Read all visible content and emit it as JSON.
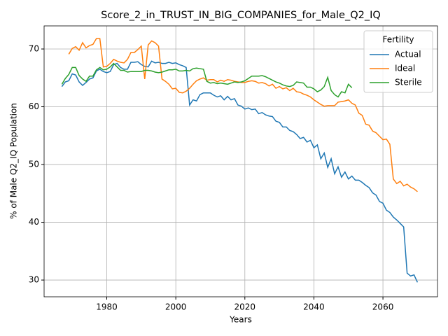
{
  "chart_data": {
    "type": "line",
    "title": "Score_2_in_TRUST_IN_BIG_COMPANIES_for_Male_Q2_IQ",
    "xlabel": "Years",
    "ylabel": "% of Male Q2_IQ Population",
    "legend_title": "Fertility",
    "legend": "upper right",
    "grid": true,
    "xlim": [
      1961.85,
      2075.8
    ],
    "ylim": [
      27.1,
      74.0
    ],
    "xticks": [
      1980,
      2000,
      2020,
      2040,
      2060
    ],
    "yticks": [
      30,
      40,
      50,
      60,
      70
    ],
    "x": [
      1967,
      1968,
      1969,
      1970,
      1971,
      1972,
      1973,
      1974,
      1975,
      1976,
      1977,
      1978,
      1979,
      1980,
      1981,
      1982,
      1983,
      1984,
      1985,
      1986,
      1987,
      1988,
      1989,
      1990,
      1991,
      1992,
      1993,
      1994,
      1995,
      1996,
      1997,
      1998,
      1999,
      2000,
      2001,
      2002,
      2003,
      2004,
      2005,
      2006,
      2007,
      2008,
      2009,
      2010,
      2011,
      2012,
      2013,
      2014,
      2015,
      2016,
      2017,
      2018,
      2019,
      2020,
      2021,
      2022,
      2023,
      2024,
      2025,
      2026,
      2027,
      2028,
      2029,
      2030,
      2031,
      2032,
      2033,
      2034,
      2035,
      2036,
      2037,
      2038,
      2039,
      2040,
      2041,
      2042,
      2043,
      2044,
      2045,
      2046,
      2047,
      2048,
      2049,
      2050,
      2051,
      2052,
      2053,
      2054,
      2055,
      2056,
      2057,
      2058,
      2059,
      2060,
      2061,
      2062,
      2063,
      2064,
      2065,
      2066,
      2067,
      2068,
      2069,
      2070
    ],
    "series": [
      {
        "name": "Actual",
        "color": "#1f77b4",
        "values": [
          63.5,
          64.3,
          64.5,
          65.7,
          65.5,
          64.3,
          63.7,
          64.2,
          64.8,
          65.0,
          66.2,
          66.5,
          66.1,
          65.9,
          66.1,
          67.3,
          67.5,
          66.8,
          66.5,
          66.5,
          67.7,
          67.7,
          67.8,
          67.3,
          67.0,
          66.9,
          67.9,
          67.6,
          67.7,
          67.5,
          67.5,
          67.7,
          67.5,
          67.6,
          67.3,
          67.1,
          66.8,
          60.3,
          61.2,
          61.0,
          62.1,
          62.4,
          62.4,
          62.4,
          62.0,
          61.7,
          61.9,
          61.2,
          61.8,
          61.2,
          61.4,
          60.3,
          60.1,
          59.6,
          59.8,
          59.5,
          59.6,
          58.8,
          59.0,
          58.6,
          58.4,
          58.3,
          57.5,
          57.3,
          56.5,
          56.5,
          55.9,
          55.7,
          55.2,
          54.5,
          54.7,
          53.9,
          54.2,
          52.9,
          53.4,
          51.0,
          52.0,
          49.5,
          51.0,
          48.4,
          49.6,
          47.8,
          48.7,
          47.5,
          48.0,
          47.3,
          47.3,
          46.9,
          46.4,
          46.0,
          45.1,
          44.7,
          43.6,
          43.3,
          42.1,
          41.7,
          40.9,
          40.4,
          39.8,
          39.2,
          31.2,
          30.7,
          30.9,
          29.6
        ]
      },
      {
        "name": "Ideal",
        "color": "#ff7f0e",
        "values": [
          null,
          null,
          69.1,
          70.1,
          70.4,
          69.8,
          71.1,
          70.2,
          70.6,
          70.8,
          71.8,
          71.8,
          66.9,
          67.0,
          67.5,
          68.2,
          67.9,
          67.7,
          67.6,
          68.2,
          69.4,
          69.4,
          69.9,
          70.5,
          64.8,
          70.7,
          71.4,
          71.1,
          70.5,
          64.8,
          64.4,
          63.9,
          63.1,
          63.2,
          62.5,
          62.4,
          62.7,
          63.2,
          63.9,
          64.5,
          64.8,
          65.0,
          64.6,
          64.7,
          64.7,
          64.3,
          64.6,
          64.4,
          64.7,
          64.6,
          64.4,
          64.3,
          64.2,
          64.2,
          64.4,
          64.5,
          64.4,
          64.1,
          64.2,
          64.0,
          63.6,
          63.9,
          63.2,
          63.5,
          63.1,
          63.3,
          62.8,
          63.2,
          62.6,
          62.5,
          62.2,
          62.0,
          61.7,
          61.2,
          60.8,
          60.4,
          60.1,
          60.2,
          60.2,
          60.2,
          60.8,
          60.9,
          61.0,
          61.2,
          60.6,
          60.3,
          58.9,
          58.5,
          57.0,
          56.8,
          55.8,
          55.5,
          54.9,
          54.3,
          54.4,
          53.5,
          47.5,
          46.7,
          47.1,
          46.3,
          46.6,
          46.1,
          45.8,
          45.3
        ]
      },
      {
        "name": "Sterile",
        "color": "#2ca02c",
        "values": [
          63.9,
          64.9,
          65.6,
          66.8,
          66.8,
          65.4,
          64.8,
          64.4,
          65.3,
          65.3,
          66.4,
          66.8,
          66.4,
          66.5,
          66.9,
          67.5,
          66.9,
          66.3,
          66.3,
          66.0,
          66.1,
          66.1,
          66.1,
          66.1,
          66.3,
          66.3,
          66.2,
          66.0,
          65.9,
          66.0,
          66.2,
          66.4,
          66.4,
          66.5,
          66.2,
          66.2,
          66.3,
          66.2,
          66.6,
          66.7,
          66.6,
          66.5,
          64.4,
          64.1,
          64.2,
          64.0,
          64.1,
          64.0,
          63.9,
          64.1,
          64.3,
          64.2,
          64.3,
          64.5,
          64.9,
          65.3,
          65.3,
          65.3,
          65.4,
          65.2,
          64.9,
          64.6,
          64.3,
          64.1,
          63.8,
          63.6,
          63.5,
          63.7,
          64.3,
          64.2,
          64.1,
          63.4,
          63.4,
          63.1,
          62.6,
          62.9,
          63.5,
          65.1,
          62.8,
          62.1,
          61.7,
          62.6,
          62.4,
          63.9,
          63.3,
          null,
          null,
          null,
          null,
          null,
          null,
          null,
          null,
          null,
          null,
          null,
          null,
          null,
          null,
          null,
          null,
          null,
          null,
          null
        ]
      }
    ]
  }
}
